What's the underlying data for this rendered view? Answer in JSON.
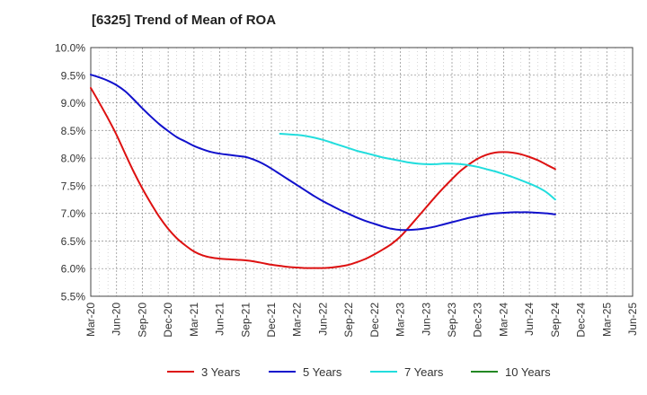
{
  "chart_data": {
    "type": "line",
    "title": "[6325]  Trend of Mean of ROA",
    "xlabel": "",
    "ylabel": "",
    "ylim": [
      5.5,
      10.0
    ],
    "yticks": [
      "5.5%",
      "6.0%",
      "6.5%",
      "7.0%",
      "7.5%",
      "8.0%",
      "8.5%",
      "9.0%",
      "9.5%",
      "10.0%"
    ],
    "ytick_values": [
      5.5,
      6.0,
      6.5,
      7.0,
      7.5,
      8.0,
      8.5,
      9.0,
      9.5,
      10.0
    ],
    "x_tick_labels": [
      "Mar-20",
      "Jun-20",
      "Sep-20",
      "Dec-20",
      "Mar-21",
      "Jun-21",
      "Sep-21",
      "Dec-21",
      "Mar-22",
      "Jun-22",
      "Sep-22",
      "Dec-22",
      "Mar-23",
      "Jun-23",
      "Sep-23",
      "Dec-23",
      "Mar-24",
      "Jun-24",
      "Sep-24",
      "Dec-24",
      "Mar-25",
      "Jun-25"
    ],
    "grid": true,
    "legend_position": "bottom",
    "series": [
      {
        "name": "3 Years",
        "color": "#dd1111",
        "start_index": 0,
        "values": [
          9.27,
          9.0,
          8.72,
          8.42,
          8.08,
          7.75,
          7.45,
          7.18,
          6.93,
          6.72,
          6.55,
          6.42,
          6.31,
          6.24,
          6.2,
          6.18,
          6.17,
          6.16,
          6.15,
          6.13,
          6.1,
          6.07,
          6.05,
          6.03,
          6.02,
          6.01,
          6.01,
          6.01,
          6.02,
          6.04,
          6.07,
          6.12,
          6.18,
          6.26,
          6.35,
          6.45,
          6.58,
          6.75,
          6.93,
          7.11,
          7.29,
          7.46,
          7.62,
          7.77,
          7.89,
          7.99,
          8.06,
          8.1,
          8.11,
          8.1,
          8.07,
          8.02,
          7.96,
          7.88,
          7.8
        ]
      },
      {
        "name": "5 Years",
        "color": "#1111cc",
        "start_index": 0,
        "values": [
          9.51,
          9.46,
          9.4,
          9.32,
          9.21,
          9.06,
          8.9,
          8.75,
          8.61,
          8.49,
          8.38,
          8.3,
          8.22,
          8.16,
          8.11,
          8.08,
          8.06,
          8.04,
          8.02,
          7.97,
          7.9,
          7.81,
          7.71,
          7.61,
          7.51,
          7.41,
          7.31,
          7.22,
          7.14,
          7.06,
          6.99,
          6.92,
          6.86,
          6.81,
          6.76,
          6.72,
          6.7,
          6.7,
          6.71,
          6.73,
          6.76,
          6.8,
          6.84,
          6.88,
          6.92,
          6.95,
          6.98,
          7.0,
          7.01,
          7.02,
          7.02,
          7.02,
          7.01,
          7.0,
          6.98
        ]
      },
      {
        "name": "7 Years",
        "color": "#22dddd",
        "start_index": 22,
        "values": [
          8.44,
          8.43,
          8.42,
          8.4,
          8.37,
          8.33,
          8.28,
          8.23,
          8.18,
          8.13,
          8.09,
          8.05,
          8.01,
          7.98,
          7.95,
          7.92,
          7.9,
          7.89,
          7.89,
          7.9,
          7.9,
          7.89,
          7.87,
          7.84,
          7.8,
          7.76,
          7.71,
          7.66,
          7.6,
          7.54,
          7.47,
          7.38,
          7.25
        ]
      },
      {
        "name": "10 Years",
        "color": "#228822",
        "start_index": 0,
        "values": []
      }
    ]
  }
}
